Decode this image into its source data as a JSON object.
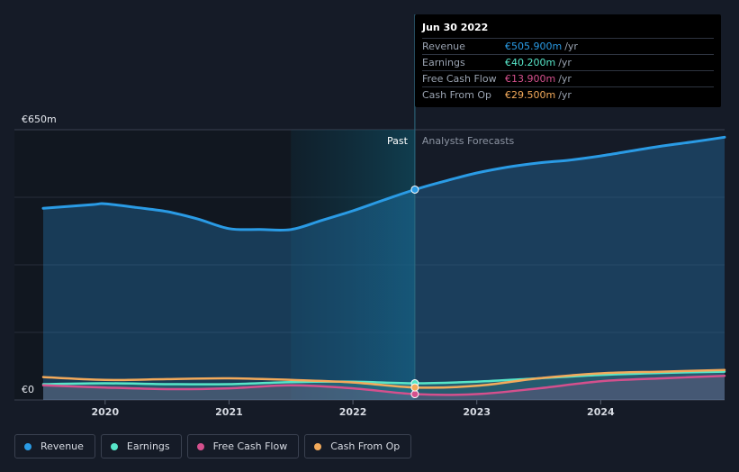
{
  "chart_data": {
    "type": "line",
    "title": "",
    "x_ticks": [
      "2020",
      "2021",
      "2022",
      "2023",
      "2024"
    ],
    "y_ticks": [
      {
        "label": "€650m",
        "value": 650
      },
      {
        "label": "€0",
        "value": 0
      }
    ],
    "ylim": [
      0,
      650
    ],
    "xlim": [
      2019.5,
      2025.0
    ],
    "grid": true,
    "past_label": "Past",
    "forecast_label": "Analysts Forecasts",
    "divider_x": 2022.5,
    "highlight_start_x": 2021.5,
    "series": [
      {
        "name": "Revenue",
        "color": "#2a9be5",
        "fill": true,
        "points": [
          [
            2019.5,
            461
          ],
          [
            2019.9,
            470
          ],
          [
            2020.0,
            472
          ],
          [
            2020.25,
            463
          ],
          [
            2020.5,
            453
          ],
          [
            2020.75,
            435
          ],
          [
            2021.0,
            412
          ],
          [
            2021.25,
            410
          ],
          [
            2021.5,
            410
          ],
          [
            2021.75,
            432
          ],
          [
            2022.0,
            455
          ],
          [
            2022.25,
            481
          ],
          [
            2022.5,
            506
          ],
          [
            2022.75,
            527
          ],
          [
            2023.0,
            546
          ],
          [
            2023.25,
            560
          ],
          [
            2023.5,
            570
          ],
          [
            2023.75,
            577
          ],
          [
            2024.0,
            587
          ],
          [
            2024.25,
            599
          ],
          [
            2024.5,
            611
          ],
          [
            2024.75,
            621
          ],
          [
            2025.0,
            632
          ]
        ]
      },
      {
        "name": "Earnings",
        "color": "#57e6c9",
        "fill": true,
        "points": [
          [
            2019.5,
            38
          ],
          [
            2020.0,
            40
          ],
          [
            2020.5,
            38
          ],
          [
            2021.0,
            38
          ],
          [
            2021.5,
            43
          ],
          [
            2022.0,
            44
          ],
          [
            2022.5,
            40
          ],
          [
            2023.0,
            44
          ],
          [
            2023.5,
            52
          ],
          [
            2024.0,
            60
          ],
          [
            2024.5,
            65
          ],
          [
            2025.0,
            68
          ]
        ]
      },
      {
        "name": "Free Cash Flow",
        "color": "#d4508d",
        "fill": true,
        "points": [
          [
            2019.5,
            35
          ],
          [
            2020.0,
            30
          ],
          [
            2020.5,
            26
          ],
          [
            2021.0,
            28
          ],
          [
            2021.5,
            35
          ],
          [
            2022.0,
            28
          ],
          [
            2022.5,
            14
          ],
          [
            2023.0,
            14
          ],
          [
            2023.5,
            28
          ],
          [
            2024.0,
            45
          ],
          [
            2024.5,
            52
          ],
          [
            2025.0,
            58
          ]
        ]
      },
      {
        "name": "Cash From Op",
        "color": "#f3aa5b",
        "fill": false,
        "points": [
          [
            2019.5,
            55
          ],
          [
            2020.0,
            48
          ],
          [
            2020.5,
            50
          ],
          [
            2021.0,
            52
          ],
          [
            2021.5,
            48
          ],
          [
            2022.0,
            42
          ],
          [
            2022.5,
            30
          ],
          [
            2023.0,
            34
          ],
          [
            2023.5,
            52
          ],
          [
            2024.0,
            64
          ],
          [
            2024.5,
            68
          ],
          [
            2025.0,
            72
          ]
        ]
      }
    ],
    "tooltip": {
      "x": 2022.5,
      "date": "Jun 30 2022",
      "unit": "/yr",
      "rows": [
        {
          "name": "Revenue",
          "value": "€505.900m",
          "color": "#2a9be5"
        },
        {
          "name": "Earnings",
          "value": "€40.200m",
          "color": "#57e6c9"
        },
        {
          "name": "Free Cash Flow",
          "value": "€13.900m",
          "color": "#d4508d"
        },
        {
          "name": "Cash From Op",
          "value": "€29.500m",
          "color": "#f3aa5b"
        }
      ]
    }
  },
  "legend": [
    {
      "label": "Revenue",
      "color": "#2a9be5"
    },
    {
      "label": "Earnings",
      "color": "#57e6c9"
    },
    {
      "label": "Free Cash Flow",
      "color": "#d4508d"
    },
    {
      "label": "Cash From Op",
      "color": "#f3aa5b"
    }
  ]
}
